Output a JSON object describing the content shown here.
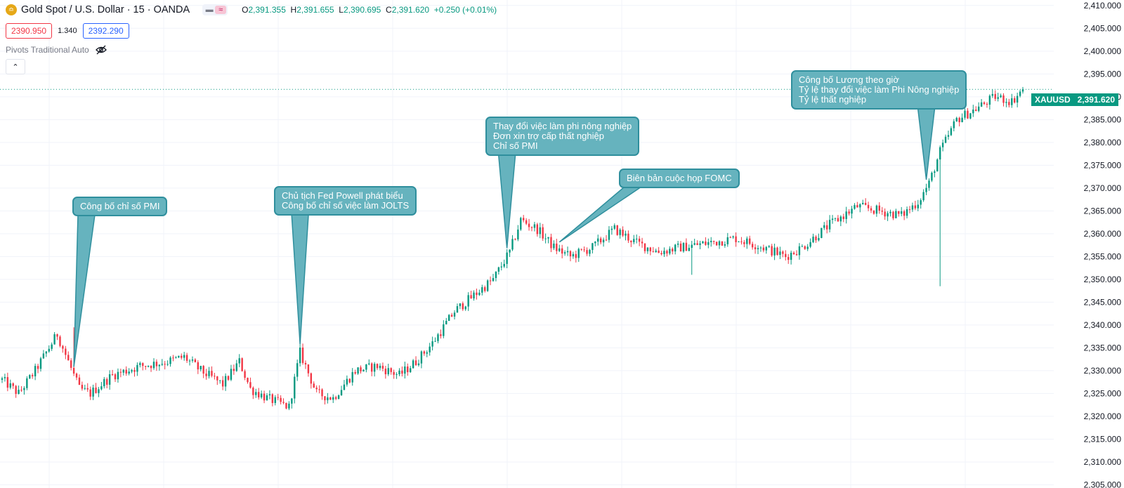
{
  "header": {
    "title": "Gold Spot / U.S. Dollar · 15 · OANDA",
    "ohlc": [
      {
        "key": "O",
        "value": "2,391.355"
      },
      {
        "key": "H",
        "value": "2,391.655"
      },
      {
        "key": "L",
        "value": "2,390.695"
      },
      {
        "key": "C",
        "value": "2,391.620"
      }
    ],
    "change": "+0.250 (+0.01%)"
  },
  "prices": {
    "bid": "2390.950",
    "spread": "1.340",
    "ask": "2392.290"
  },
  "indicator": {
    "label": "Pivots Traditional Auto"
  },
  "symbol": {
    "name": "XAUUSD",
    "last": "2,391.620"
  },
  "colors": {
    "up": "#089981",
    "down": "#f23645",
    "callout": "#66b3be",
    "callout_border": "#2f8f9d"
  },
  "annotations": [
    {
      "lines": [
        "Công bố chỉ số PMI"
      ],
      "anchor_index": 26
    },
    {
      "lines": [
        "Chủ tịch Fed Powell phát biểu",
        "Công bố chỉ số việc làm JOLTS"
      ],
      "anchor_index": 108
    },
    {
      "lines": [
        "Thay đổi việc làm phi nông nghiệp",
        "Đơn xin trợ cấp thất nghiệp",
        "Chỉ số PMI"
      ],
      "anchor_index": 183
    },
    {
      "lines": [
        "Biên bản cuộc họp FOMC"
      ],
      "anchor_index": 202
    },
    {
      "lines": [
        "Công bố Lương theo giờ",
        "Tỷ lệ thay đổi việc làm Phi Nông nghiệp",
        "Tỷ lệ thất nghiệp"
      ],
      "anchor_index": 335
    }
  ],
  "chart_data": {
    "type": "candlestick",
    "title": "Gold Spot / U.S. Dollar · 15 · OANDA",
    "y_ticks": [
      2305,
      2310,
      2315,
      2320,
      2325,
      2330,
      2335,
      2340,
      2345,
      2350,
      2355,
      2360,
      2365,
      2370,
      2375,
      2380,
      2385,
      2390,
      2395,
      2400,
      2405,
      2410
    ],
    "y_tick_labels": [
      "2,305.000",
      "2,310.000",
      "2,315.000",
      "2,320.000",
      "2,325.000",
      "2,330.000",
      "2,335.000",
      "2,340.000",
      "2,345.000",
      "2,350.000",
      "2,355.000",
      "2,360.000",
      "2,365.000",
      "2,370.000",
      "2,375.000",
      "2,380.000",
      "2,385.000",
      "2,390.000",
      "2,395.000",
      "2,400.000",
      "2,405.000",
      "2,410.000"
    ],
    "ylim": [
      2304.3,
      2411.2
    ],
    "last_price": 2391.62,
    "approx_closes": [
      [
        0,
        2328
      ],
      [
        6,
        2325
      ],
      [
        12,
        2330
      ],
      [
        20,
        2338
      ],
      [
        24,
        2332
      ],
      [
        28,
        2326
      ],
      [
        32,
        2325
      ],
      [
        40,
        2329
      ],
      [
        50,
        2331
      ],
      [
        60,
        2332
      ],
      [
        66,
        2333
      ],
      [
        72,
        2330
      ],
      [
        80,
        2327
      ],
      [
        86,
        2332
      ],
      [
        90,
        2326
      ],
      [
        96,
        2324
      ],
      [
        104,
        2322
      ],
      [
        108,
        2334
      ],
      [
        114,
        2325
      ],
      [
        120,
        2324
      ],
      [
        128,
        2330
      ],
      [
        136,
        2331
      ],
      [
        144,
        2329
      ],
      [
        150,
        2332
      ],
      [
        156,
        2336
      ],
      [
        164,
        2343
      ],
      [
        172,
        2347
      ],
      [
        178,
        2350
      ],
      [
        184,
        2356
      ],
      [
        188,
        2363
      ],
      [
        194,
        2361
      ],
      [
        200,
        2357
      ],
      [
        206,
        2355
      ],
      [
        214,
        2357
      ],
      [
        222,
        2361
      ],
      [
        230,
        2358
      ],
      [
        238,
        2356
      ],
      [
        246,
        2357
      ],
      [
        256,
        2358
      ],
      [
        266,
        2359
      ],
      [
        276,
        2357
      ],
      [
        284,
        2355
      ],
      [
        290,
        2357
      ],
      [
        300,
        2362
      ],
      [
        310,
        2366
      ],
      [
        318,
        2365
      ],
      [
        326,
        2364
      ],
      [
        332,
        2367
      ],
      [
        336,
        2371
      ],
      [
        340,
        2378
      ],
      [
        346,
        2385
      ],
      [
        352,
        2387
      ],
      [
        360,
        2390
      ],
      [
        366,
        2389
      ],
      [
        370,
        2391.62
      ]
    ]
  }
}
